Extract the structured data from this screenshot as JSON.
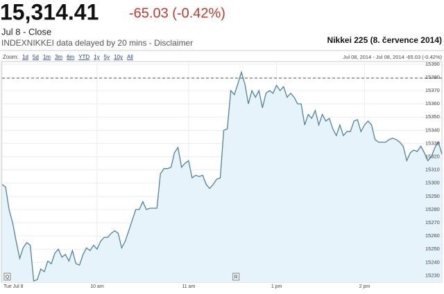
{
  "header": {
    "price": "15,314.41",
    "change": "-65.03 (-0.42%)",
    "date_label": "Jul 8 - Close",
    "source_note": "INDEXNIKKEI data delayed by 20 mins - Disclaimer"
  },
  "zoom": {
    "label": "Zoom:",
    "options": [
      "1d",
      "5d",
      "1m",
      "3m",
      "6m",
      "YTD",
      "1y",
      "5y",
      "10y",
      "All"
    ],
    "range_text": "Jul 08, 2014 - Jul 08, 2014 -65.03 (-0.42%)"
  },
  "chart_data": {
    "type": "line",
    "title": "Nikkei 225 (8. července 2014)",
    "color": "#4f8299",
    "fill_color": "#e6f3fa",
    "x": [
      0,
      1,
      2,
      3,
      4,
      5,
      6,
      7,
      8,
      9,
      10,
      11,
      12,
      13,
      14,
      15,
      16,
      17,
      18,
      19,
      20,
      21,
      22,
      23,
      24,
      25,
      26,
      27,
      28,
      29,
      30,
      31,
      32,
      33,
      34,
      35,
      36,
      37,
      38,
      39,
      40,
      41,
      42,
      43,
      44,
      45,
      46,
      47,
      48,
      49,
      50,
      51,
      52,
      53,
      54,
      55,
      56,
      57,
      58,
      59,
      60,
      61,
      62,
      63,
      64,
      65,
      66,
      67,
      68,
      69,
      70,
      71,
      72,
      73,
      74,
      75,
      76,
      77,
      78,
      79,
      80,
      81,
      82,
      83,
      84,
      85,
      86,
      87,
      88,
      89,
      90,
      91,
      92,
      93,
      94,
      95,
      96,
      97,
      98,
      99,
      100,
      101,
      102,
      103,
      104,
      105,
      106,
      107,
      108,
      109,
      110,
      111,
      112,
      113,
      114,
      115,
      116,
      117,
      118,
      119,
      120,
      121,
      122,
      123,
      124,
      125
    ],
    "values": [
      15299,
      15297,
      15280,
      15270,
      15256,
      15243,
      15251,
      15255,
      15253,
      15226,
      15227,
      15235,
      15233,
      15241,
      15239,
      15247,
      15250,
      15244,
      15246,
      15241,
      15249,
      15239,
      15238,
      15246,
      15251,
      15249,
      15253,
      15250,
      15256,
      15259,
      15259,
      15262,
      15264,
      15262,
      15251,
      15256,
      15264,
      15272,
      15280,
      15280,
      15286,
      15280,
      15281,
      15281,
      15281,
      15307,
      15311,
      15311,
      15312,
      15323,
      15327,
      15312,
      15315,
      15317,
      15304,
      15306,
      15305,
      15306,
      15299,
      15296,
      15299,
      15303,
      15304,
      15340,
      15341,
      15370,
      15367,
      15375,
      15384,
      15375,
      15360,
      15370,
      15365,
      15370,
      15357,
      15368,
      15370,
      15368,
      15374,
      15370,
      15373,
      15365,
      15368,
      15365,
      15360,
      15360,
      15344,
      15352,
      15349,
      15355,
      15344,
      15352,
      15347,
      15349,
      15341,
      15336,
      15344,
      15336,
      15339,
      15339,
      15347,
      15348,
      15339,
      15344,
      15347,
      15344,
      15333,
      15331,
      15331,
      15331,
      15333,
      15334,
      15333,
      15331,
      15328,
      15317,
      15323,
      15325,
      15324,
      15328,
      15323,
      15317,
      15320,
      15327,
      15331,
      15322
    ],
    "previous_close": 15379.44,
    "xlim": [
      0,
      125
    ],
    "ylim": [
      15225,
      15392
    ],
    "xticks": [
      {
        "value": 0,
        "label": "Tue Jul 8"
      },
      {
        "value": 27,
        "label": "10 am"
      },
      {
        "value": 53,
        "label": "11 am"
      },
      {
        "value": 78,
        "label": "1 pm"
      },
      {
        "value": 103,
        "label": "2 pm"
      }
    ],
    "yticks": [
      15230,
      15240,
      15250,
      15260,
      15270,
      15280,
      15290,
      15300,
      15310,
      15320,
      15330,
      15340,
      15350,
      15360,
      15370,
      15380,
      15390
    ],
    "grid": true,
    "flags": [
      {
        "x": 0,
        "label": "Q"
      },
      {
        "x": 65,
        "label": "R"
      }
    ]
  }
}
